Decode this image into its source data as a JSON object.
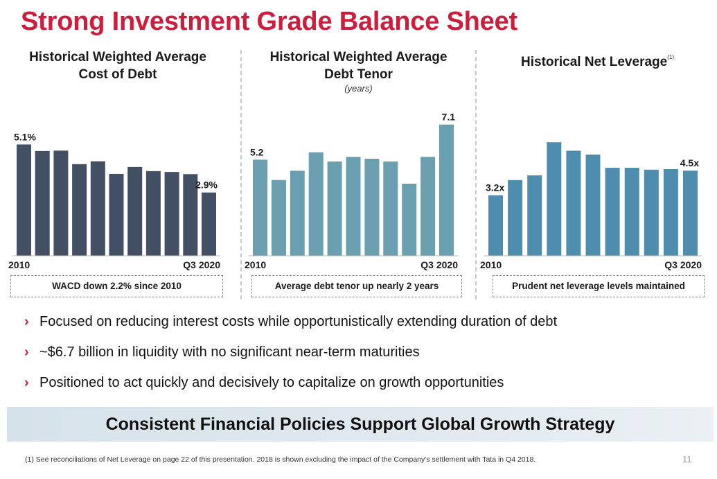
{
  "title": "Strong Investment Grade Balance Sheet",
  "panels": [
    {
      "title_line1": "Historical Weighted Average",
      "title_line2": "Cost of Debt",
      "callout": "WACD down 2.2% since 2010"
    },
    {
      "title_line1": "Historical Weighted Average",
      "title_line2": "Debt Tenor",
      "unit": "(years)",
      "callout": "Average debt tenor up nearly 2 years"
    },
    {
      "title": "Historical Net Leverage",
      "footnote_marker": "(1)",
      "callout": "Prudent net leverage levels maintained"
    }
  ],
  "chart_data": [
    {
      "type": "bar",
      "x_start_label": "2010",
      "x_end_label": "Q3 2020",
      "values": [
        5.1,
        4.8,
        4.82,
        4.2,
        4.33,
        3.75,
        4.07,
        3.88,
        3.84,
        3.74,
        2.9
      ],
      "data_labels": {
        "first": "5.1%",
        "last": "2.9%"
      },
      "color": "#434f62",
      "ylim": [
        0,
        5.4
      ]
    },
    {
      "type": "bar",
      "x_start_label": "2010",
      "x_end_label": "Q3 2020",
      "values": [
        5.2,
        4.1,
        4.6,
        5.6,
        5.1,
        5.35,
        5.25,
        5.1,
        3.9,
        5.35,
        7.1
      ],
      "data_labels": {
        "first": "5.2",
        "last": "7.1"
      },
      "color": "#6a9faf",
      "ylim": [
        0,
        7.5
      ]
    },
    {
      "type": "bar",
      "x_start_label": "2010",
      "x_end_label": "Q3 2020",
      "values": [
        3.2,
        4.0,
        4.25,
        6.0,
        5.55,
        5.35,
        4.65,
        4.65,
        4.55,
        4.58,
        4.5
      ],
      "data_labels": {
        "first": "3.2x",
        "last": "4.5x"
      },
      "color": "#4f8daf",
      "ylim": [
        0,
        6.3
      ]
    }
  ],
  "bullets": [
    "Focused on reducing interest costs while opportunistically extending duration of debt",
    "~$6.7 billion in liquidity with no significant near-term maturities",
    "Positioned to act quickly and decisively to capitalize on growth opportunities"
  ],
  "bullet_glyph": "›",
  "banner": "Consistent Financial Policies Support Global Growth Strategy",
  "footnote": "(1)   See reconciliations of Net Leverage on page 22 of this presentation. 2018 is shown excluding the impact of the Company's settlement with Tata in Q4 2018.",
  "page_number": "11",
  "colors": {
    "accent": "#d01c3c"
  }
}
